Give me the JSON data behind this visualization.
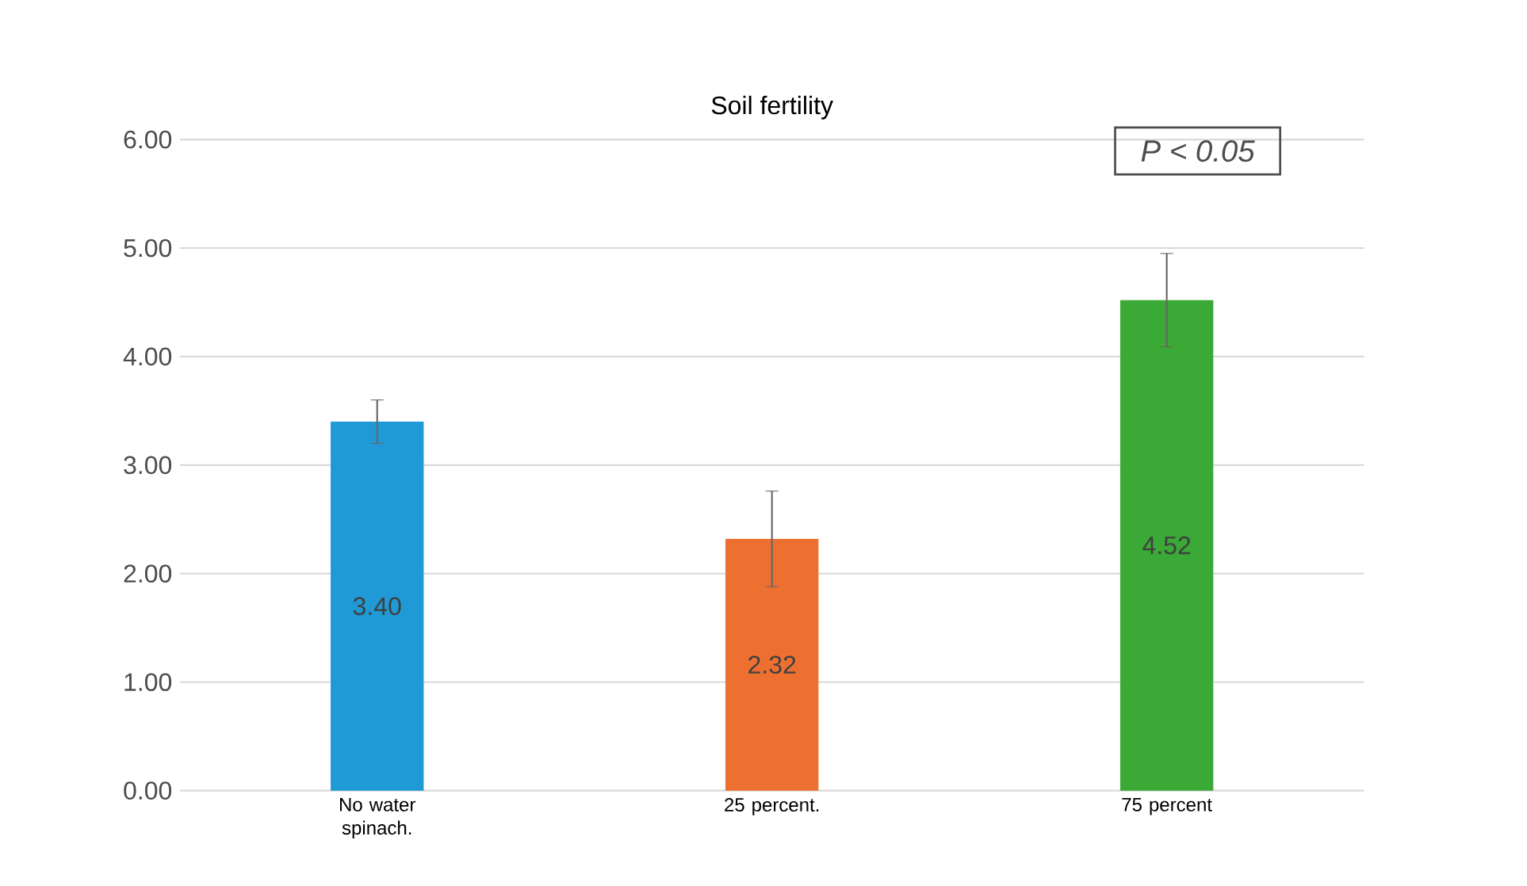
{
  "chart_data": {
    "type": "bar",
    "title": "Soil fertility",
    "categories": [
      "No water spinach.",
      "25 percent.",
      "75 percent"
    ],
    "values": [
      3.4,
      2.32,
      4.52
    ],
    "colors": [
      "#1f9ad6",
      "#ed7031",
      "#3aa935"
    ],
    "errors": [
      0.2,
      0.44,
      0.43
    ],
    "value_labels": [
      "3.40",
      "2.32",
      "4.52"
    ],
    "ylim": [
      0,
      6
    ],
    "yticks": [
      {
        "value": 0,
        "label": "0.00"
      },
      {
        "value": 1,
        "label": "1.00"
      },
      {
        "value": 2,
        "label": "2.00"
      },
      {
        "value": 3,
        "label": "3.00"
      },
      {
        "value": 4,
        "label": "4.00"
      },
      {
        "value": 5,
        "label": "5.00"
      },
      {
        "value": 6,
        "label": "6.00"
      }
    ],
    "grid": "y",
    "annotations": [
      "P < 0.05"
    ]
  }
}
